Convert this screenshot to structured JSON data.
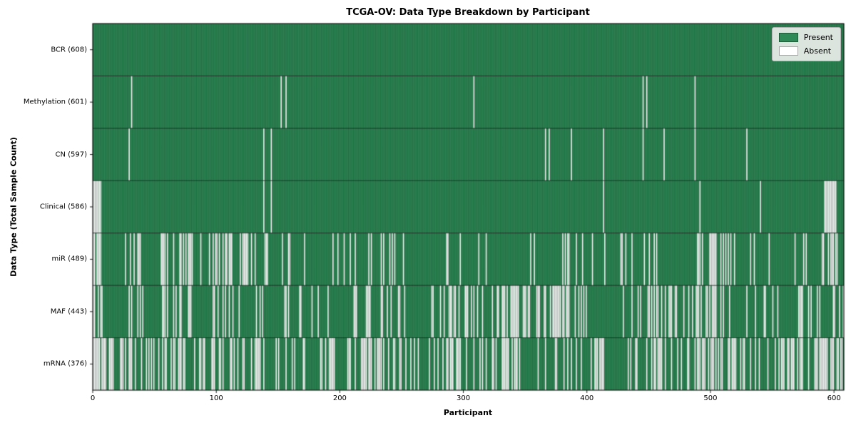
{
  "chart_data": {
    "type": "heatmap",
    "title": "TCGA-OV: Data Type Breakdown by Participant",
    "xlabel": "Participant",
    "ylabel": "Data Type (Total Sample Count)",
    "x_ticks": [
      0,
      100,
      200,
      300,
      400,
      500,
      600
    ],
    "x_range": [
      0,
      608
    ],
    "n_participants": 608,
    "grid": false,
    "legend_position": "upper right",
    "legend": [
      {
        "label": "Present",
        "color": "#2e8b57"
      },
      {
        "label": "Absent",
        "color": "#ffffff"
      }
    ],
    "colors": {
      "present": "#2e8b57",
      "absent": "#ffffff",
      "bar_edge": "rgba(0,0,0,0.38)",
      "row_separator": "rgba(0,0,0,0.85)",
      "border": "#000000"
    },
    "layout": {
      "plot": [
        130,
        33,
        1183,
        547
      ]
    },
    "rows": [
      {
        "name": "BCR",
        "label": "BCR (608)",
        "present_count": 608,
        "absent_indices": []
      },
      {
        "name": "Methylation",
        "label": "Methylation (601)",
        "present_count": 601,
        "absent_indices": [
          31,
          152,
          156,
          308,
          445,
          448,
          487
        ]
      },
      {
        "name": "CN",
        "label": "CN (597)",
        "present_count": 597,
        "absent_indices": [
          29,
          138,
          144,
          366,
          369,
          387,
          413,
          445,
          462,
          487,
          529
        ]
      },
      {
        "name": "Clinical",
        "label": "Clinical (586)",
        "present_count": 586,
        "absent_indices": [
          0,
          1,
          2,
          3,
          4,
          5,
          6,
          138,
          144,
          413,
          491,
          540,
          592,
          593,
          594,
          595,
          596,
          597,
          598,
          599,
          600,
          601
        ]
      },
      {
        "name": "miR",
        "label": "miR (489)",
        "present_count": 489,
        "absent_gen": {
          "seed": 11,
          "base": 0.13,
          "clusters": [
            [
              0,
              7,
              0.95
            ],
            [
              18,
              42,
              0.4
            ],
            [
              55,
              130,
              0.33
            ],
            [
              196,
              215,
              0.5
            ],
            [
              240,
              262,
              0.4
            ],
            [
              480,
              512,
              0.85
            ],
            [
              583,
              602,
              0.55
            ]
          ]
        }
      },
      {
        "name": "MAF",
        "label": "MAF (443)",
        "present_count": 443,
        "absent_gen": {
          "seed": 23,
          "base": 0.16,
          "clusters": [
            [
              0,
              7,
              0.95
            ],
            [
              55,
              80,
              0.5
            ],
            [
              215,
              235,
              0.5
            ],
            [
              290,
              350,
              0.55
            ],
            [
              365,
              385,
              0.8
            ],
            [
              440,
              475,
              0.65
            ],
            [
              488,
              512,
              0.6
            ],
            [
              570,
              600,
              0.5
            ]
          ]
        }
      },
      {
        "name": "mRNA",
        "label": "mRNA (376)",
        "present_count": 376,
        "absent_gen": {
          "seed": 37,
          "base": 0.3,
          "clusters": [
            [
              0,
              7,
              0.95
            ],
            [
              10,
              60,
              0.5
            ],
            [
              200,
              265,
              0.5
            ],
            [
              330,
              345,
              0.6
            ],
            [
              487,
              512,
              0.9
            ],
            [
              588,
              606,
              0.85
            ]
          ]
        }
      }
    ]
  }
}
